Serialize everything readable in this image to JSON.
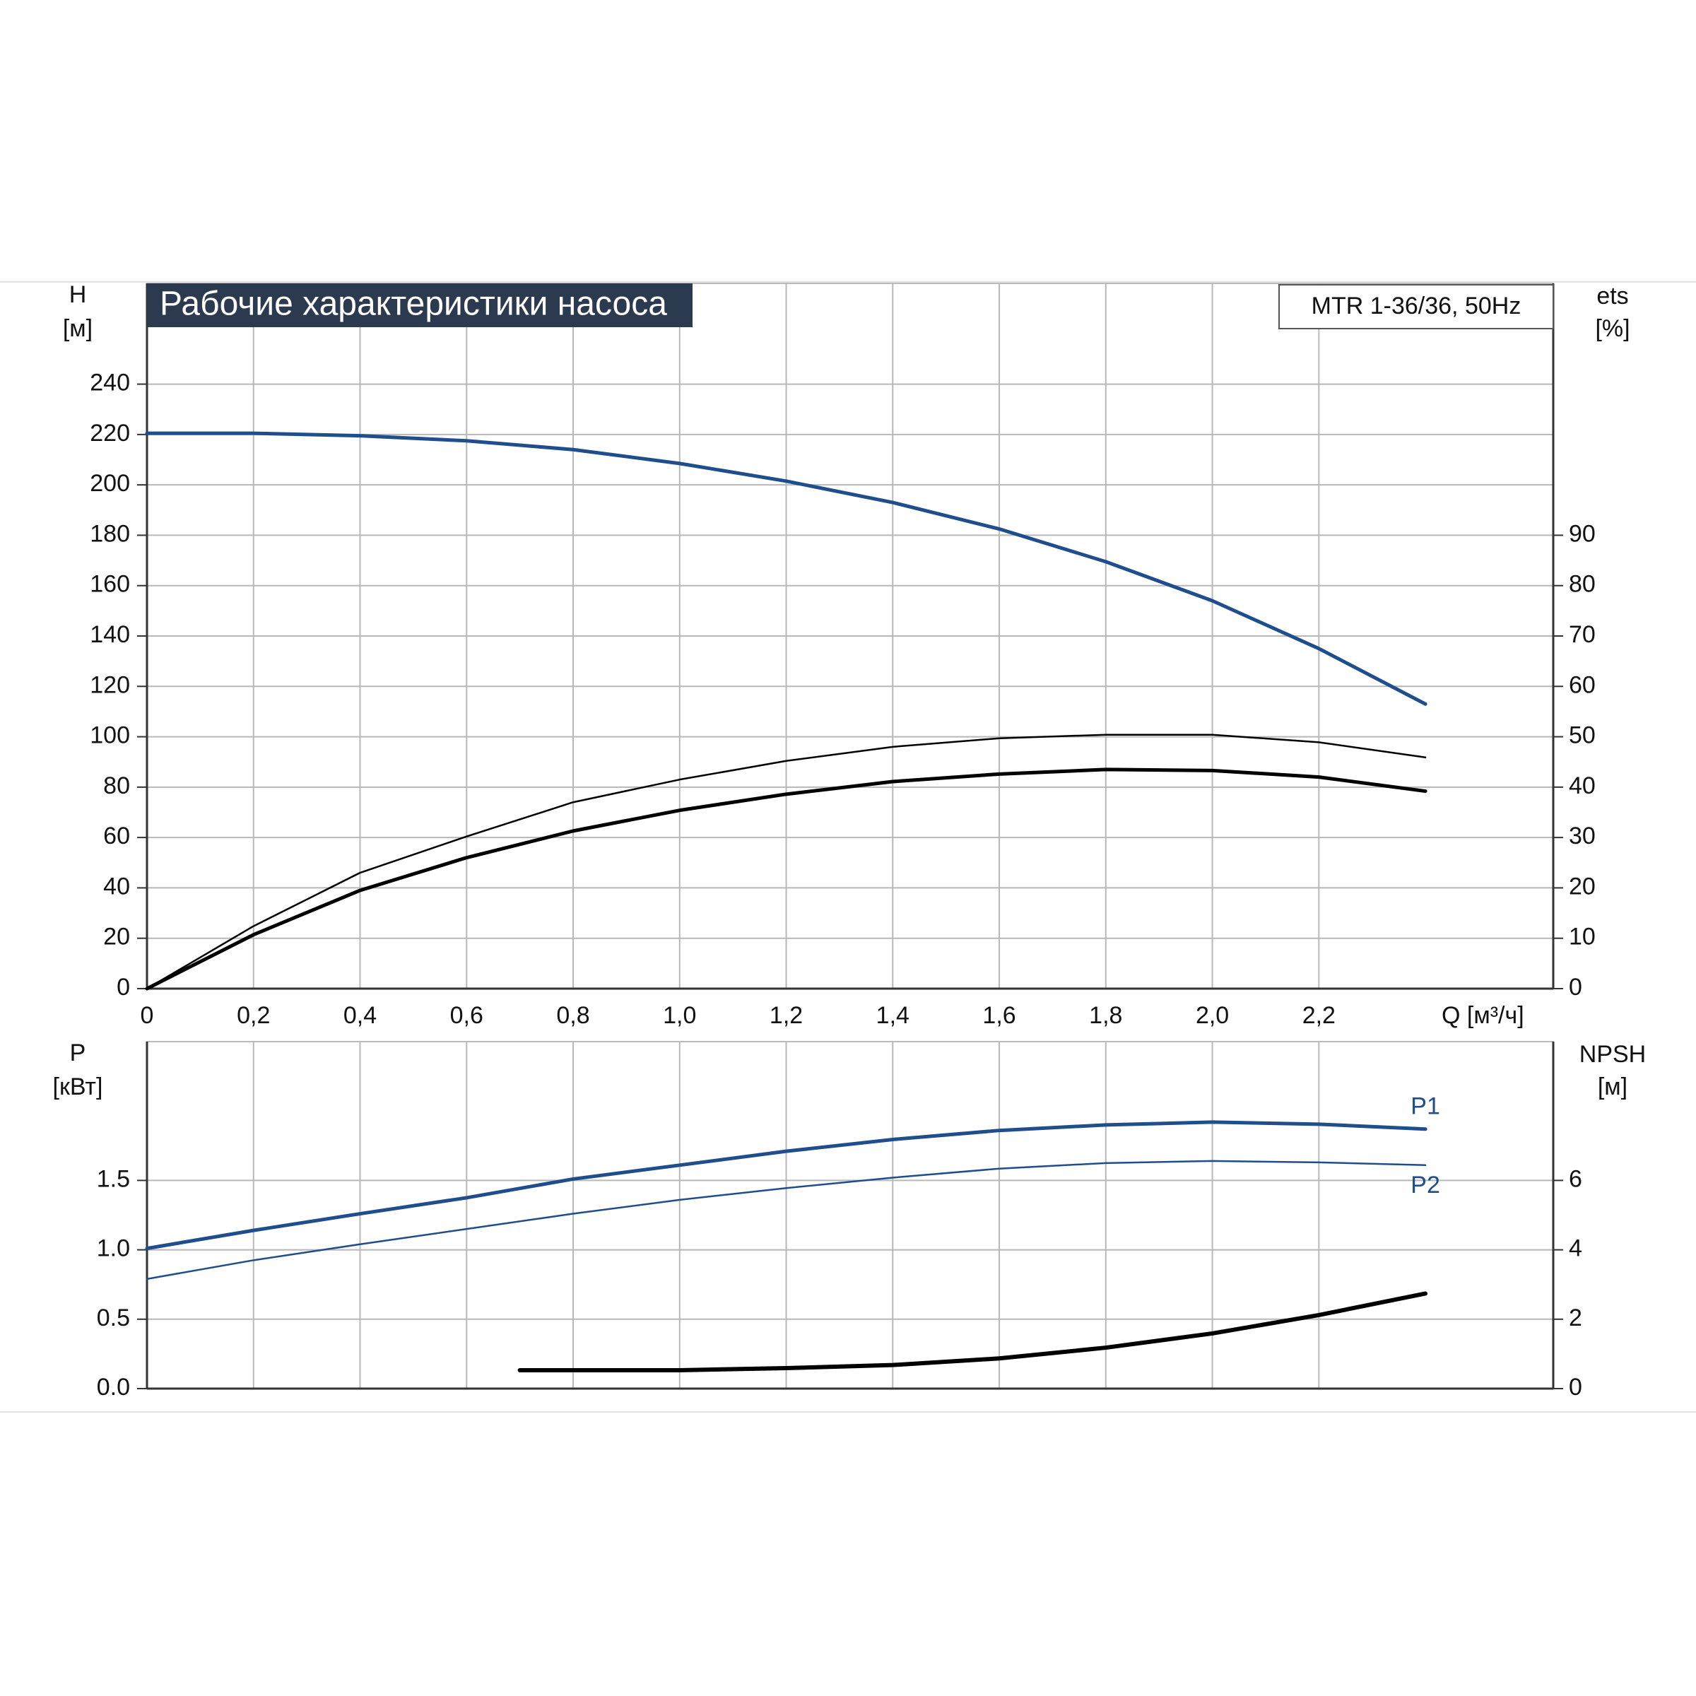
{
  "chart_data": [
    {
      "type": "line",
      "title": "Рабочие характеристики насоса",
      "subtitle": "MTR 1-36/36, 50Hz",
      "ylabel": "H",
      "yunit": "[м]",
      "y2label": "ets",
      "y2unit": "[%]",
      "xlabel": "Q [м³/ч]",
      "x": [
        0,
        0.2,
        0.4,
        0.6,
        0.8,
        1.0,
        1.2,
        1.4,
        1.6,
        1.8,
        2.0,
        2.2,
        2.4
      ],
      "xlim": [
        0,
        2.64
      ],
      "ylim": [
        0,
        280
      ],
      "y2lim": [
        0,
        140
      ],
      "xticks": [
        0,
        {
          "value": 0.2,
          "label": "0,2"
        },
        {
          "value": 0.4,
          "label": "0,4"
        },
        {
          "value": 0.6,
          "label": "0,6"
        },
        {
          "value": 0.8,
          "label": "0,8"
        },
        {
          "value": 1.0,
          "label": "1,0"
        },
        {
          "value": 1.2,
          "label": "1,2"
        },
        {
          "value": 1.4,
          "label": "1,4"
        },
        {
          "value": 1.6,
          "label": "1,6"
        },
        {
          "value": 1.8,
          "label": "1,8"
        },
        {
          "value": 2.0,
          "label": "2,0"
        },
        {
          "value": 2.2,
          "label": "2,2"
        }
      ],
      "yticks": [
        0,
        20,
        40,
        60,
        80,
        100,
        120,
        140,
        160,
        180,
        200,
        220,
        240
      ],
      "y2ticks": [
        0,
        10,
        20,
        30,
        40,
        50,
        60,
        70,
        80,
        90
      ],
      "grid": true,
      "series": [
        {
          "color": "#1f4e8c",
          "width": 5,
          "values": [
            220.5,
            220.5,
            219.5,
            217.5,
            214,
            208.5,
            201.5,
            193,
            182.5,
            169.5,
            154,
            135,
            113
          ]
        },
        {
          "color": "#000000",
          "width": 2.5,
          "axis": "y2",
          "values": [
            0,
            12.4,
            23,
            30.2,
            37,
            41.5,
            45.2,
            48,
            49.7,
            50.4,
            50.4,
            48.9,
            45.9
          ]
        },
        {
          "color": "#000000",
          "width": 5,
          "axis": "y2",
          "values": [
            0,
            10.7,
            19.5,
            26,
            31.3,
            35.4,
            38.6,
            41.1,
            42.6,
            43.5,
            43.3,
            42,
            39.2
          ]
        }
      ]
    },
    {
      "type": "line",
      "ylabel": "P",
      "yunit": "[кВт]",
      "y2label": "NPSH",
      "y2unit": "[м]",
      "x": [
        0,
        0.2,
        0.4,
        0.6,
        0.8,
        1.0,
        1.2,
        1.4,
        1.6,
        1.8,
        2.0,
        2.2,
        2.4
      ],
      "xlim": [
        0,
        2.64
      ],
      "ylim": [
        0,
        2.5
      ],
      "y2lim": [
        0,
        10
      ],
      "yticks": [
        {
          "value": 0,
          "label": "0.0"
        },
        0.5,
        {
          "value": 1,
          "label": "1.0"
        },
        1.5
      ],
      "y2ticks": [
        0,
        2,
        4,
        6
      ],
      "grid": true,
      "series": [
        {
          "name": "P1",
          "color": "#1f4e8c",
          "width": 5,
          "values": [
            1.01,
            1.14,
            1.26,
            1.375,
            1.51,
            1.61,
            1.71,
            1.795,
            1.86,
            1.9,
            1.92,
            1.905,
            1.87
          ]
        },
        {
          "name": "P2",
          "color": "#1f4e8c",
          "width": 2.5,
          "values": [
            0.79,
            0.925,
            1.04,
            1.15,
            1.26,
            1.36,
            1.445,
            1.52,
            1.585,
            1.625,
            1.64,
            1.63,
            1.61
          ]
        },
        {
          "color": "#000000",
          "width": 6,
          "axis": "y2",
          "x": [
            0.7,
            1.0,
            1.2,
            1.4,
            1.6,
            1.8,
            2.0,
            2.2,
            2.4
          ],
          "values": [
            0.53,
            0.53,
            0.59,
            0.68,
            0.87,
            1.18,
            1.59,
            2.12,
            2.74
          ]
        }
      ]
    }
  ]
}
